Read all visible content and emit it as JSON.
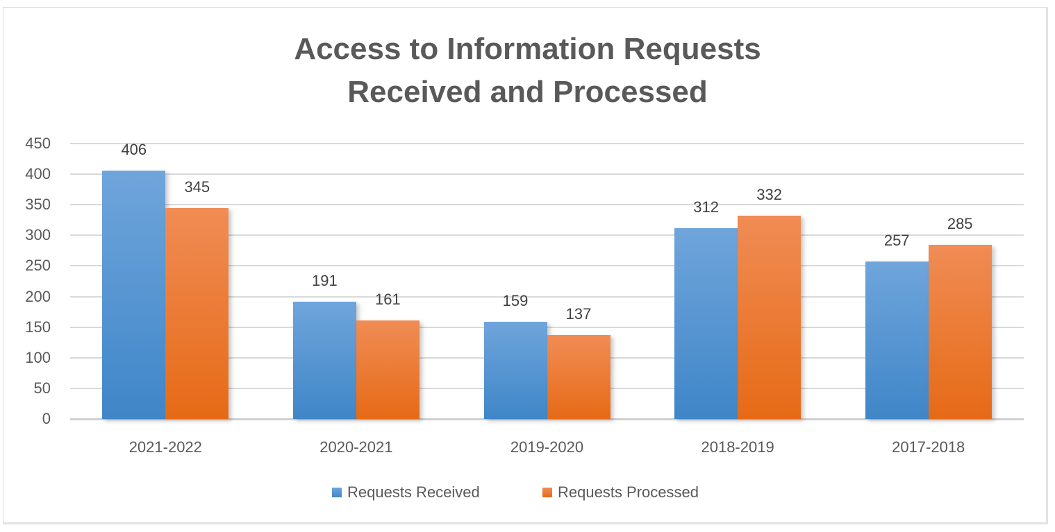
{
  "chart_data": {
    "type": "bar",
    "title": "Access to Information Requests Received and Processed",
    "title_lines": [
      "Access to Information Requests",
      "Received and Processed"
    ],
    "categories": [
      "2021-2022",
      "2020-2021",
      "2019-2020",
      "2018-2019",
      "2017-2018"
    ],
    "series": [
      {
        "name": "Requests Received",
        "color": "#5b9bd5",
        "values": [
          406,
          191,
          159,
          312,
          257
        ]
      },
      {
        "name": "Requests Processed",
        "color": "#ed7d31",
        "values": [
          345,
          161,
          137,
          332,
          285
        ]
      }
    ],
    "xlabel": "",
    "ylabel": "",
    "ylim": [
      0,
      450
    ],
    "yticks": [
      "0",
      "50",
      "100",
      "150",
      "200",
      "250",
      "300",
      "350",
      "400",
      "450"
    ],
    "grid": true,
    "legend_position": "bottom",
    "data_labels": true
  }
}
